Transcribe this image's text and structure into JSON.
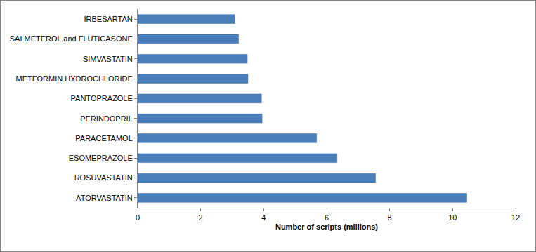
{
  "chart_data": {
    "type": "bar",
    "orientation": "horizontal",
    "x_label": "Number of scripts (millions)",
    "categories": [
      "ATORVASTATIN",
      "ROSUVASTATIN",
      "ESOMEPRAZOLE",
      "PARACETAMOL",
      "PERINDOPRIL",
      "PANTOPRAZOLE",
      "METFORMIN HYDROCHLORIDE",
      "SIMVASTATIN",
      "SALMETEROL and FLUTICASONE",
      "IRBESARTAN"
    ],
    "values": [
      10.45,
      7.55,
      6.33,
      5.68,
      3.95,
      3.93,
      3.5,
      3.48,
      3.2,
      3.08
    ],
    "color": "#4a7ebb",
    "xlim": [
      0,
      12
    ],
    "xticks": [
      0,
      2,
      4,
      6,
      8,
      10,
      12
    ],
    "grid": false
  }
}
